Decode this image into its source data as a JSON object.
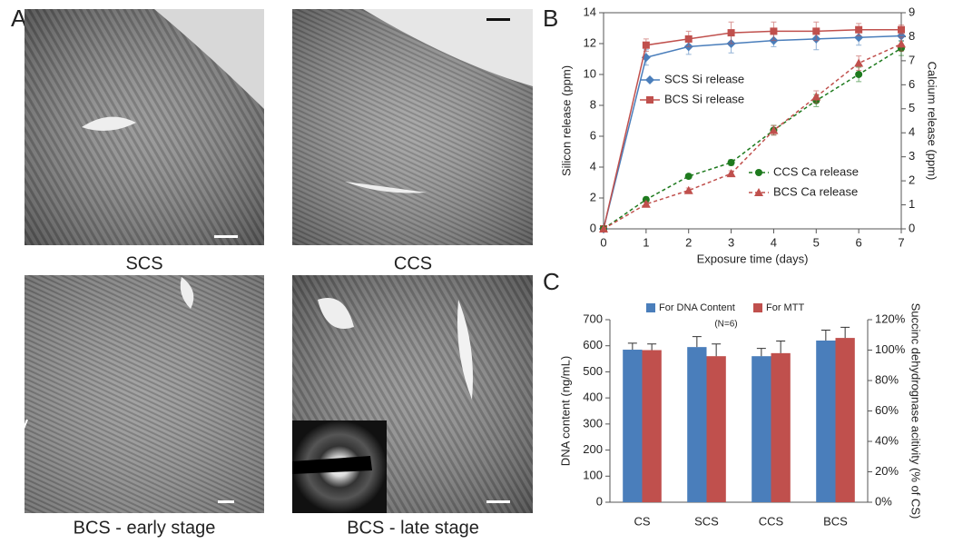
{
  "panel_labels": [
    "A",
    "B",
    "C"
  ],
  "images": [
    {
      "caption": "SCS"
    },
    {
      "caption": "CCS"
    },
    {
      "caption": "BCS - early stage"
    },
    {
      "caption": "BCS - late stage"
    }
  ],
  "chart_data": [
    {
      "type": "line",
      "x": [
        0,
        1,
        2,
        3,
        4,
        5,
        6,
        7
      ],
      "xlim": [
        0,
        7
      ],
      "xticks": [
        0,
        1,
        2,
        3,
        4,
        5,
        6,
        7
      ],
      "ylim": [
        0,
        14
      ],
      "yticks": [
        0,
        2,
        4,
        6,
        8,
        10,
        12,
        14
      ],
      "y2lim": [
        0,
        9
      ],
      "y2ticks": [
        0,
        1,
        2,
        3,
        4,
        5,
        6,
        7,
        8,
        9
      ],
      "x_label": "Exposure time (days)",
      "y_label": "Silicon release (ppm)",
      "y2_label": "Calcium release (ppm)",
      "series": [
        {
          "name": "SCS Si release",
          "color": "#4a7ebb",
          "marker": "diamond",
          "dash": false,
          "values": [
            0,
            11.1,
            11.8,
            12.0,
            12.2,
            12.3,
            12.4,
            12.5
          ],
          "errors": [
            0,
            0.5,
            0.5,
            0.6,
            0.4,
            0.7,
            0.5,
            0.3
          ]
        },
        {
          "name": "BCS Si release",
          "color": "#c0504d",
          "marker": "square",
          "dash": false,
          "values": [
            0,
            11.9,
            12.3,
            12.7,
            12.8,
            12.8,
            12.9,
            12.9
          ],
          "errors": [
            0,
            0.4,
            0.5,
            0.7,
            0.6,
            0.6,
            0.4,
            0.3
          ]
        },
        {
          "name": "CCS Ca release",
          "color": "#1e7a1e",
          "marker": "circle",
          "dash": true,
          "axis": "y2",
          "values": [
            0,
            1.22,
            2.19,
            2.76,
            4.11,
            5.34,
            6.43,
            7.52
          ],
          "errors": [
            0,
            0.1,
            0.1,
            0.12,
            0.2,
            0.25,
            0.3,
            0.3
          ]
        },
        {
          "name": "BCS Ca release",
          "color": "#c0504d",
          "marker": "triangle",
          "dash": true,
          "axis": "y2",
          "values": [
            0,
            1.03,
            1.6,
            2.3,
            4.1,
            5.5,
            6.9,
            7.7
          ],
          "errors": [
            0,
            0.1,
            0.1,
            0.12,
            0.2,
            0.25,
            0.3,
            0.3
          ]
        }
      ]
    },
    {
      "type": "bar",
      "categories": [
        "CS",
        "SCS",
        "CCS",
        "BCS"
      ],
      "ylim": [
        0,
        700
      ],
      "yticks": [
        0,
        100,
        200,
        300,
        400,
        500,
        600,
        700
      ],
      "y2lim": [
        0,
        120
      ],
      "y2ticks": [
        {
          "value": 0,
          "label": "0%"
        },
        {
          "value": 20,
          "label": "20%"
        },
        {
          "value": 40,
          "label": "40%"
        },
        {
          "value": 60,
          "label": "60%"
        },
        {
          "value": 80,
          "label": "80%"
        },
        {
          "value": 100,
          "label": "100%"
        },
        {
          "value": 120,
          "label": "120%"
        }
      ],
      "y_label": "DNA content (ng/mL)",
      "y2_label": "Succinc dehydrognase acitivity (% of CS)",
      "annotation": "(N=6)",
      "series": [
        {
          "name": "For DNA Content",
          "color": "#4a7ebb",
          "values": [
            585,
            595,
            560,
            620
          ],
          "errors": [
            25,
            40,
            30,
            40
          ]
        },
        {
          "name": "For MTT",
          "color": "#c0504d",
          "axis": "y2",
          "values": [
            100,
            96,
            98,
            108
          ],
          "errors": [
            4,
            8,
            8,
            7
          ]
        }
      ]
    }
  ]
}
